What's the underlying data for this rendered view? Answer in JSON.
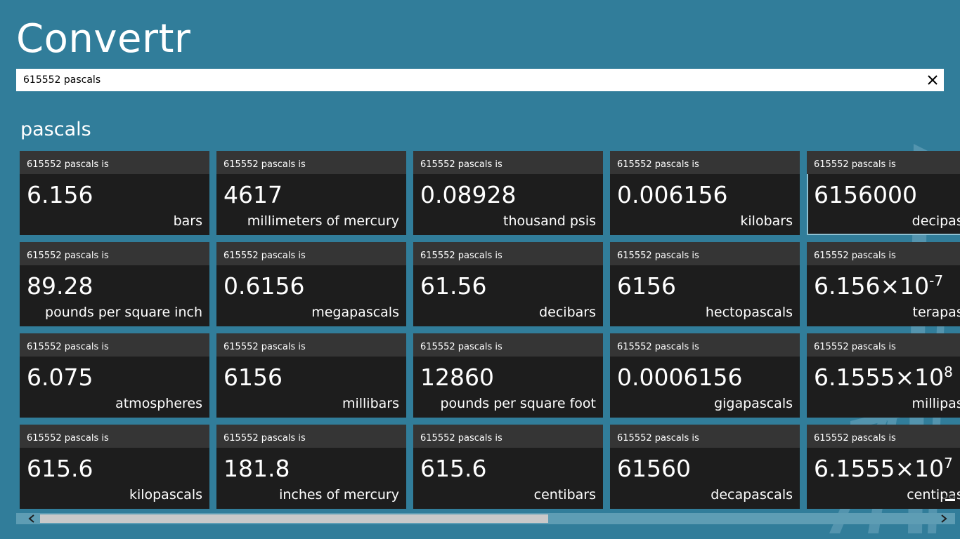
{
  "app": {
    "title": "Convertr"
  },
  "search": {
    "value": "615552 pascals",
    "clear_icon": "close-icon"
  },
  "section": {
    "title": "pascals"
  },
  "tiles": [
    {
      "header": "615552 pascals is",
      "value": "6.156",
      "exp": "",
      "unit": "bars"
    },
    {
      "header": "615552 pascals is",
      "value": "4617",
      "exp": "",
      "unit": "millimeters of mercury"
    },
    {
      "header": "615552 pascals is",
      "value": "0.08928",
      "exp": "",
      "unit": "thousand psis"
    },
    {
      "header": "615552 pascals is",
      "value": "0.006156",
      "exp": "",
      "unit": "kilobars"
    },
    {
      "header": "615552 pascals is",
      "value": "6156000",
      "exp": "",
      "unit": "decipascals",
      "selected": true
    },
    {
      "header": "615552 pascals is",
      "value": "89.28",
      "exp": "",
      "unit": "pounds per square inch"
    },
    {
      "header": "615552 pascals is",
      "value": "0.6156",
      "exp": "",
      "unit": "megapascals"
    },
    {
      "header": "615552 pascals is",
      "value": "61.56",
      "exp": "",
      "unit": "decibars"
    },
    {
      "header": "615552 pascals is",
      "value": "6156",
      "exp": "",
      "unit": "hectopascals"
    },
    {
      "header": "615552 pascals is",
      "value": "6.156×10",
      "exp": "-7",
      "unit": "terapascals"
    },
    {
      "header": "615552 pascals is",
      "value": "6.075",
      "exp": "",
      "unit": "atmospheres"
    },
    {
      "header": "615552 pascals is",
      "value": "6156",
      "exp": "",
      "unit": "millibars"
    },
    {
      "header": "615552 pascals is",
      "value": "12860",
      "exp": "",
      "unit": "pounds per square foot"
    },
    {
      "header": "615552 pascals is",
      "value": "0.0006156",
      "exp": "",
      "unit": "gigapascals"
    },
    {
      "header": "615552 pascals is",
      "value": "6.1555×10",
      "exp": "8",
      "unit": "millipascals"
    },
    {
      "header": "615552 pascals is",
      "value": "615.6",
      "exp": "",
      "unit": "kilopascals"
    },
    {
      "header": "615552 pascals is",
      "value": "181.8",
      "exp": "",
      "unit": "inches of mercury"
    },
    {
      "header": "615552 pascals is",
      "value": "615.6",
      "exp": "",
      "unit": "centibars"
    },
    {
      "header": "615552 pascals is",
      "value": "61560",
      "exp": "",
      "unit": "decapascals"
    },
    {
      "header": "615552 pascals is",
      "value": "6.1555×10",
      "exp": "7",
      "unit": "centipascals"
    }
  ],
  "scrollbar": {
    "thumb_fraction": 0.57,
    "position_fraction": 0.0
  },
  "colors": {
    "background": "#317d9a",
    "tile": "#1d1d1d",
    "tile_header": "#353535",
    "scroll_thumb": "#c9c9c9"
  }
}
